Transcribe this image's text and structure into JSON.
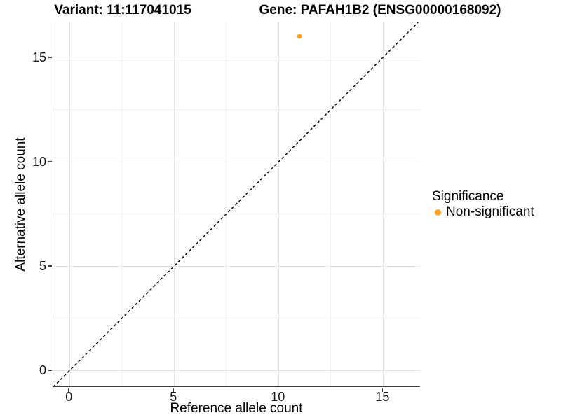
{
  "header": {
    "variant_title": "Variant: 11:117041015",
    "gene_title": "Gene: PAFAH1B2 (ENSG00000168092)"
  },
  "legend": {
    "title": "Significance",
    "items": [
      {
        "label": "Non-significant",
        "marker": "circle-icon",
        "color": "#FFA32A"
      }
    ]
  },
  "chart_data": {
    "type": "scatter",
    "xlabel": "Reference allele count",
    "ylabel": "Alternative allele count",
    "x_ticks": [
      0,
      5,
      10,
      15
    ],
    "y_ticks": [
      0,
      5,
      10,
      15
    ],
    "x_minor_ticks": [
      2.5,
      7.5,
      12.5
    ],
    "y_minor_ticks": [
      2.5,
      7.5,
      12.5
    ],
    "xlim": [
      -0.78,
      16.8
    ],
    "ylim": [
      -0.79,
      16.67
    ],
    "grid": "major-and-minor",
    "legend_position": "right",
    "points": [
      {
        "x": 11,
        "y": 16,
        "series": "Non-significant",
        "color": "#FFA32A",
        "radius_px": 3.5
      }
    ],
    "reference_line": {
      "kind": "identity",
      "style": "dashed",
      "color": "#000000"
    },
    "colors": {
      "grid_major": "#E4E4E4",
      "grid_minor": "#F0F0F0",
      "axis_line": "#3F3F3F",
      "tick_text": "#1A1A1A"
    }
  }
}
